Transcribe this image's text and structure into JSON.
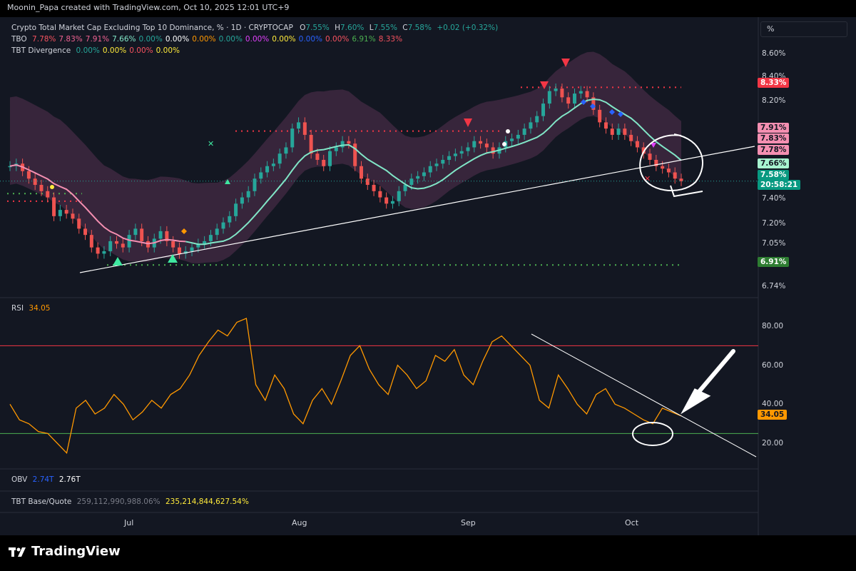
{
  "header": {
    "credit": "Moonin_Papa created with TradingView.com, Oct 10, 2025 12:01 UTC+9"
  },
  "legend": {
    "title": "Crypto Total Market Cap Excluding Top 10 Dominance, % · 1D · CRYPTOCAP",
    "o_label": "O",
    "o": "7.55%",
    "h_label": "H",
    "h": "7.60%",
    "l_label": "L",
    "l": "7.55%",
    "c_label": "C",
    "c": "7.58%",
    "change": "+0.02 (+0.32%)",
    "tbo_label": "TBO",
    "tbo_values": [
      {
        "text": "7.78%",
        "color": "#f7525f"
      },
      {
        "text": "7.83%",
        "color": "#f06292"
      },
      {
        "text": "7.91%",
        "color": "#f06292"
      },
      {
        "text": "7.66%",
        "color": "#81e6c7"
      },
      {
        "text": "0.00%",
        "color": "#26a69a"
      },
      {
        "text": "0.00%",
        "color": "#ffffff"
      },
      {
        "text": "0.00%",
        "color": "#ff9800"
      },
      {
        "text": "0.00%",
        "color": "#26a69a"
      },
      {
        "text": "0.00%",
        "color": "#e040fb"
      },
      {
        "text": "0.00%",
        "color": "#ffeb3b"
      },
      {
        "text": "0.00%",
        "color": "#2962ff"
      },
      {
        "text": "0.00%",
        "color": "#f7525f"
      },
      {
        "text": "6.91%",
        "color": "#4caf50"
      },
      {
        "text": "8.33%",
        "color": "#f7525f"
      }
    ],
    "div_label": "TBT Divergence",
    "div_values": [
      {
        "text": "0.00%",
        "color": "#26a69a"
      },
      {
        "text": "0.00%",
        "color": "#ffeb3b"
      },
      {
        "text": "0.00%",
        "color": "#f7525f"
      },
      {
        "text": "0.00%",
        "color": "#ffeb3b"
      }
    ]
  },
  "percent_box": {
    "label": "%"
  },
  "price_axis": {
    "ticks": [
      "8.60%",
      "8.40%",
      "8.20%",
      "7.40%",
      "7.20%",
      "7.05%",
      "6.74%"
    ]
  },
  "price_tags": [
    {
      "text": "8.33%",
      "bg": "#f23645",
      "fg": "#ffffff"
    },
    {
      "text": "7.91%",
      "bg": "#f48fb1",
      "fg": "#131722"
    },
    {
      "text": "7.83%",
      "bg": "#f48fb1",
      "fg": "#131722"
    },
    {
      "text": "7.78%",
      "bg": "#f48fb1",
      "fg": "#131722"
    },
    {
      "text": "7.66%",
      "bg": "#a7f3d0",
      "fg": "#131722"
    },
    {
      "text": "7.58%",
      "bg": "#089981",
      "fg": "#ffffff"
    },
    {
      "text": "20:58:21",
      "bg": "#089981",
      "fg": "#ffffff"
    },
    {
      "text": "6.91%",
      "bg": "#2e7d32",
      "fg": "#ffffff"
    }
  ],
  "rsi": {
    "label": "RSI",
    "value": "34.05",
    "ticks": [
      "80.00",
      "60.00",
      "40.00",
      "20.00"
    ],
    "tag": "34.05"
  },
  "obv": {
    "label": "OBV",
    "v1": "2.74T",
    "v2": "2.76T"
  },
  "tbt_base": {
    "label": "TBT Base/Quote",
    "v1": "259,112,990,988.06%",
    "v2": "235,214,844,627.54%"
  },
  "time_axis": {
    "labels": [
      "Jul",
      "Aug",
      "Sep",
      "Oct"
    ]
  },
  "brand": {
    "name": "TradingView"
  },
  "colors": {
    "up": "#26a69a",
    "down": "#ef5350",
    "rsi": "#ff9800",
    "background": "#131722"
  },
  "chart_data": {
    "type": "candlestick",
    "title": "Crypto Total Market Cap Excluding Top 10 Dominance, % · 1D · CRYPTOCAP",
    "unit": "%",
    "ohlc_last": {
      "open": 7.55,
      "high": 7.6,
      "low": 7.55,
      "close": 7.58
    },
    "close_series_approx": [
      7.7,
      7.72,
      7.66,
      7.6,
      7.55,
      7.5,
      7.45,
      7.3,
      7.35,
      7.32,
      7.28,
      7.2,
      7.15,
      7.05,
      7.0,
      7.02,
      7.1,
      7.08,
      7.05,
      7.15,
      7.2,
      7.1,
      7.05,
      7.12,
      7.18,
      7.1,
      7.05,
      7.0,
      7.02,
      7.05,
      7.08,
      7.1,
      7.15,
      7.2,
      7.25,
      7.3,
      7.4,
      7.45,
      7.5,
      7.6,
      7.65,
      7.7,
      7.72,
      7.8,
      7.85,
      8.0,
      8.05,
      7.95,
      7.8,
      7.75,
      7.7,
      7.82,
      7.85,
      7.9,
      7.88,
      7.7,
      7.6,
      7.55,
      7.5,
      7.45,
      7.4,
      7.42,
      7.5,
      7.55,
      7.6,
      7.62,
      7.65,
      7.7,
      7.72,
      7.75,
      7.78,
      7.8,
      7.82,
      7.85,
      7.9,
      7.88,
      7.85,
      7.8,
      7.85,
      7.9,
      7.92,
      7.95,
      8.0,
      8.05,
      8.1,
      8.2,
      8.3,
      8.32,
      8.25,
      8.2,
      8.28,
      8.3,
      8.25,
      8.15,
      8.05,
      8.0,
      7.95,
      8.0,
      7.95,
      7.9,
      7.85,
      7.8,
      7.75,
      7.7,
      7.68,
      7.65,
      7.6,
      7.58
    ],
    "levels": [
      {
        "name": "resistance",
        "value": 8.33
      },
      {
        "name": "support",
        "value": 6.91
      }
    ],
    "rsi": {
      "value": 34.05,
      "overbought": 70,
      "oversold": 25,
      "series_approx": [
        40,
        32,
        30,
        26,
        25,
        20,
        15,
        38,
        42,
        35,
        38,
        45,
        40,
        32,
        36,
        42,
        38,
        45,
        48,
        55,
        65,
        72,
        78,
        75,
        82,
        84,
        50,
        42,
        55,
        48,
        35,
        30,
        42,
        48,
        40,
        52,
        65,
        70,
        58,
        50,
        45,
        60,
        55,
        48,
        52,
        65,
        62,
        68,
        55,
        50,
        62,
        72,
        75,
        70,
        65,
        60,
        42,
        38,
        55,
        48,
        40,
        35,
        45,
        48,
        40,
        38,
        35,
        32,
        30,
        38,
        36,
        34
      ]
    },
    "x_labels": [
      "Jul",
      "Aug",
      "Sep",
      "Oct"
    ]
  }
}
